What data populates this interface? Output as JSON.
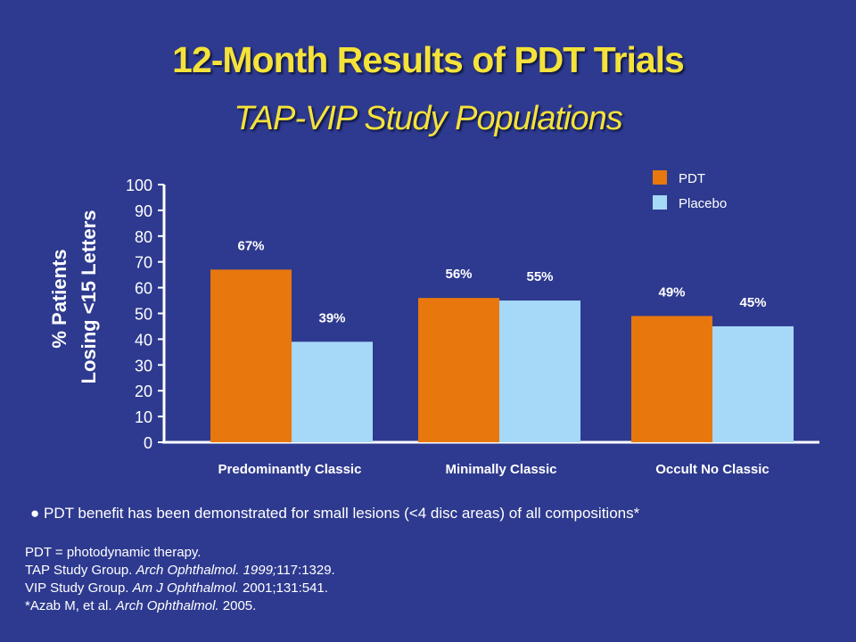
{
  "title": "12-Month Results of PDT Trials",
  "subtitle": "TAP-VIP Study Populations",
  "chart_data": {
    "type": "bar",
    "ylabel_line1": "% Patients",
    "ylabel_line2": "Losing <15 Letters",
    "ylim": [
      0,
      100
    ],
    "yticks": [
      "0",
      "10",
      "20",
      "30",
      "40",
      "50",
      "60",
      "70",
      "80",
      "90",
      "100"
    ],
    "grid": false,
    "legend_position": "top-right",
    "categories": [
      "Predominantly Classic",
      "Minimally Classic",
      "Occult No Classic"
    ],
    "series": [
      {
        "name": "PDT",
        "color": "#e8770e",
        "values": [
          67,
          56,
          49
        ],
        "labels": [
          "67%",
          "56%",
          "49%"
        ]
      },
      {
        "name": "Placebo",
        "color": "#a6d8f8",
        "values": [
          39,
          55,
          45
        ],
        "labels": [
          "39%",
          "55%",
          "45%"
        ]
      }
    ]
  },
  "bullet": {
    "symbol": "●",
    "text": "PDT benefit has been demonstrated for small lesions (<4 disc areas) of all compositions*"
  },
  "references": {
    "line1": "PDT = photodynamic therapy.",
    "line2_a": "TAP Study Group. ",
    "line2_b": "Arch Ophthalmol. 1999;",
    "line2_c": "117:1329.",
    "line3_a": "VIP Study Group. ",
    "line3_b": "Am J Ophthalmol.",
    "line3_c": " 2001;131:541.",
    "line4_a": "*Azab M, et al. ",
    "line4_b": "Arch Ophthalmol.",
    "line4_c": " 2005."
  }
}
